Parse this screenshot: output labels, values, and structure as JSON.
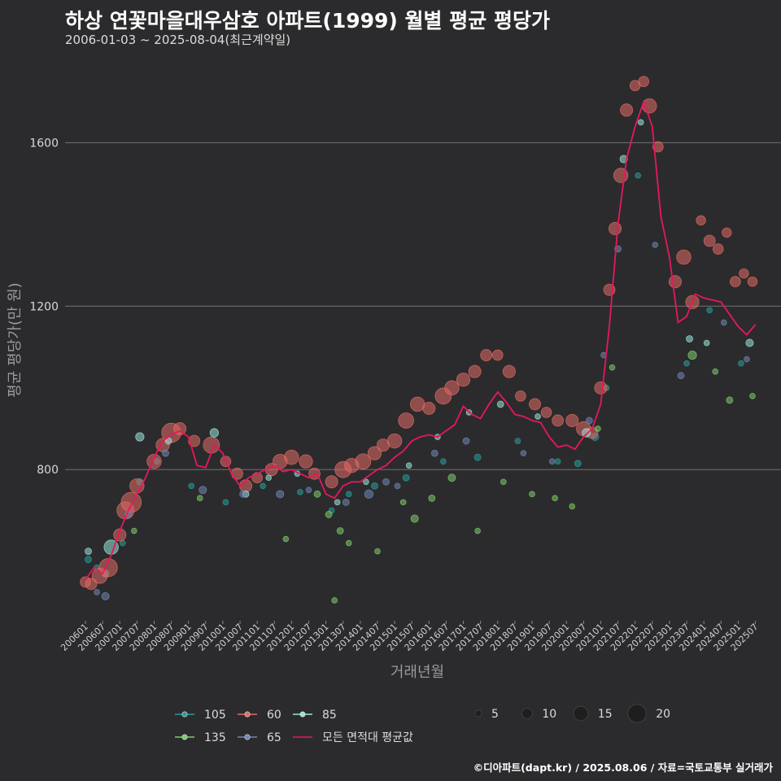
{
  "header": {
    "title": "하상 연꽃마을대우삼호 아파트(1999) 월별 평균 평당가",
    "subtitle": "2006-01-03 ~ 2025-08-04(최근계약일)"
  },
  "footer": {
    "source": "©디아파트(dapt.kr) / 2025.08.06 / 자료=국토교통부 실거래가"
  },
  "chart_data": {
    "type": "scatter",
    "xlabel": "거래년월",
    "ylabel": "평균 평당가(만 원)",
    "ylim": [
      430,
      1810
    ],
    "yticks": [
      800,
      1200,
      1600
    ],
    "grid": true,
    "legend_placement": "bottom",
    "x_tick_labels": [
      "200601",
      "200607",
      "200701",
      "200707",
      "200801",
      "200807",
      "200901",
      "200907",
      "201001",
      "201007",
      "201101",
      "201107",
      "201201",
      "201207",
      "201301",
      "201307",
      "201401",
      "201407",
      "201501",
      "201507",
      "201601",
      "201607",
      "201701",
      "201707",
      "201801",
      "201807",
      "201901",
      "201907",
      "202001",
      "202007",
      "202101",
      "202107",
      "202201",
      "202207",
      "202301",
      "202307",
      "202401",
      "202407",
      "202501",
      "202507"
    ],
    "line_series": {
      "name": "모든 면적대 평균값",
      "color": "#e8175d",
      "points": [
        [
          "2006-01",
          530
        ],
        [
          "2006-04",
          560
        ],
        [
          "2006-07",
          545
        ],
        [
          "2006-10",
          590
        ],
        [
          "2007-01",
          650
        ],
        [
          "2007-04",
          700
        ],
        [
          "2007-07",
          740
        ],
        [
          "2007-10",
          780
        ],
        [
          "2008-01",
          830
        ],
        [
          "2008-04",
          870
        ],
        [
          "2008-07",
          885
        ],
        [
          "2008-10",
          895
        ],
        [
          "2009-01",
          880
        ],
        [
          "2009-04",
          810
        ],
        [
          "2009-07",
          805
        ],
        [
          "2009-10",
          860
        ],
        [
          "2010-01",
          840
        ],
        [
          "2010-04",
          790
        ],
        [
          "2010-07",
          760
        ],
        [
          "2010-10",
          780
        ],
        [
          "2011-01",
          790
        ],
        [
          "2011-04",
          800
        ],
        [
          "2011-07",
          810
        ],
        [
          "2011-10",
          795
        ],
        [
          "2012-01",
          800
        ],
        [
          "2012-04",
          790
        ],
        [
          "2012-07",
          780
        ],
        [
          "2012-10",
          790
        ],
        [
          "2013-01",
          740
        ],
        [
          "2013-04",
          730
        ],
        [
          "2013-07",
          760
        ],
        [
          "2013-10",
          770
        ],
        [
          "2014-01",
          770
        ],
        [
          "2014-04",
          785
        ],
        [
          "2014-07",
          800
        ],
        [
          "2014-10",
          810
        ],
        [
          "2015-01",
          830
        ],
        [
          "2015-04",
          845
        ],
        [
          "2015-07",
          870
        ],
        [
          "2015-10",
          880
        ],
        [
          "2016-01",
          885
        ],
        [
          "2016-04",
          880
        ],
        [
          "2016-07",
          895
        ],
        [
          "2016-10",
          910
        ],
        [
          "2017-01",
          955
        ],
        [
          "2017-04",
          935
        ],
        [
          "2017-07",
          925
        ],
        [
          "2017-10",
          960
        ],
        [
          "2018-01",
          990
        ],
        [
          "2018-04",
          965
        ],
        [
          "2018-07",
          935
        ],
        [
          "2018-10",
          930
        ],
        [
          "2019-01",
          920
        ],
        [
          "2019-04",
          915
        ],
        [
          "2019-07",
          880
        ],
        [
          "2019-10",
          855
        ],
        [
          "2020-01",
          860
        ],
        [
          "2020-04",
          850
        ],
        [
          "2020-07",
          880
        ],
        [
          "2020-10",
          900
        ],
        [
          "2021-01",
          960
        ],
        [
          "2021-04",
          1150
        ],
        [
          "2021-07",
          1400
        ],
        [
          "2021-10",
          1560
        ],
        [
          "2022-01",
          1640
        ],
        [
          "2022-04",
          1700
        ],
        [
          "2022-07",
          1640
        ],
        [
          "2022-10",
          1420
        ],
        [
          "2023-01",
          1320
        ],
        [
          "2023-04",
          1160
        ],
        [
          "2023-07",
          1175
        ],
        [
          "2023-10",
          1230
        ],
        [
          "2024-01",
          1220
        ],
        [
          "2024-04",
          1215
        ],
        [
          "2024-07",
          1210
        ],
        [
          "2024-10",
          1180
        ],
        [
          "2025-01",
          1150
        ],
        [
          "2025-04",
          1130
        ],
        [
          "2025-07",
          1155
        ]
      ]
    },
    "scatter_series": [
      {
        "name": "105",
        "color": "#2a9d9a",
        "points": [
          [
            "2006-02",
            580,
            4
          ],
          [
            "2006-05",
            560,
            3
          ],
          [
            "2006-08",
            545,
            5
          ],
          [
            "2007-02",
            620,
            3
          ],
          [
            "2007-08",
            770,
            4
          ],
          [
            "2008-02",
            820,
            3
          ],
          [
            "2009-02",
            760,
            3
          ],
          [
            "2010-02",
            720,
            3
          ],
          [
            "2011-03",
            760,
            3
          ],
          [
            "2012-04",
            745,
            3
          ],
          [
            "2013-03",
            700,
            3
          ],
          [
            "2013-09",
            740,
            3
          ],
          [
            "2014-06",
            760,
            4
          ],
          [
            "2015-05",
            780,
            4
          ],
          [
            "2016-06",
            820,
            3
          ],
          [
            "2017-06",
            830,
            4
          ],
          [
            "2018-08",
            870,
            3
          ],
          [
            "2019-10",
            820,
            3
          ],
          [
            "2020-05",
            815,
            4
          ],
          [
            "2020-11",
            880,
            5
          ],
          [
            "2021-03",
            1000,
            3
          ],
          [
            "2022-02",
            1520,
            3
          ],
          [
            "2023-07",
            1060,
            3
          ],
          [
            "2024-03",
            1190,
            3
          ],
          [
            "2025-02",
            1060,
            3
          ]
        ]
      },
      {
        "name": "60",
        "color": "#e26a64",
        "points": [
          [
            "2006-01",
            525,
            8
          ],
          [
            "2006-03",
            520,
            9
          ],
          [
            "2006-06",
            540,
            13
          ],
          [
            "2006-09",
            560,
            16
          ],
          [
            "2007-01",
            640,
            10
          ],
          [
            "2007-03",
            700,
            15
          ],
          [
            "2007-05",
            720,
            18
          ],
          [
            "2007-07",
            760,
            12
          ],
          [
            "2008-01",
            820,
            12
          ],
          [
            "2008-04",
            860,
            11
          ],
          [
            "2008-07",
            890,
            17
          ],
          [
            "2008-10",
            900,
            10
          ],
          [
            "2009-03",
            870,
            9
          ],
          [
            "2009-09",
            860,
            14
          ],
          [
            "2010-02",
            820,
            8
          ],
          [
            "2010-06",
            790,
            9
          ],
          [
            "2010-09",
            760,
            10
          ],
          [
            "2011-01",
            780,
            8
          ],
          [
            "2011-06",
            800,
            10
          ],
          [
            "2011-09",
            820,
            12
          ],
          [
            "2012-01",
            830,
            12
          ],
          [
            "2012-06",
            820,
            11
          ],
          [
            "2012-09",
            790,
            9
          ],
          [
            "2013-03",
            770,
            10
          ],
          [
            "2013-07",
            800,
            14
          ],
          [
            "2013-10",
            810,
            12
          ],
          [
            "2014-02",
            820,
            13
          ],
          [
            "2014-06",
            840,
            11
          ],
          [
            "2014-09",
            860,
            10
          ],
          [
            "2015-01",
            870,
            12
          ],
          [
            "2015-05",
            920,
            13
          ],
          [
            "2015-09",
            960,
            12
          ],
          [
            "2016-01",
            950,
            10
          ],
          [
            "2016-06",
            980,
            14
          ],
          [
            "2016-09",
            1000,
            12
          ],
          [
            "2017-01",
            1020,
            11
          ],
          [
            "2017-05",
            1040,
            10
          ],
          [
            "2017-09",
            1080,
            9
          ],
          [
            "2018-01",
            1080,
            8
          ],
          [
            "2018-05",
            1040,
            10
          ],
          [
            "2018-09",
            980,
            8
          ],
          [
            "2019-02",
            960,
            9
          ],
          [
            "2019-06",
            940,
            8
          ],
          [
            "2019-10",
            920,
            9
          ],
          [
            "2020-03",
            920,
            10
          ],
          [
            "2020-07",
            900,
            12
          ],
          [
            "2020-10",
            890,
            9
          ],
          [
            "2021-01",
            1000,
            10
          ],
          [
            "2021-04",
            1240,
            9
          ],
          [
            "2021-06",
            1390,
            10
          ],
          [
            "2021-08",
            1520,
            12
          ],
          [
            "2021-10",
            1680,
            10
          ],
          [
            "2022-01",
            1740,
            8
          ],
          [
            "2022-04",
            1750,
            8
          ],
          [
            "2022-06",
            1690,
            12
          ],
          [
            "2022-09",
            1590,
            8
          ],
          [
            "2023-03",
            1260,
            10
          ],
          [
            "2023-06",
            1320,
            12
          ],
          [
            "2023-09",
            1210,
            11
          ],
          [
            "2023-12",
            1410,
            7
          ],
          [
            "2024-03",
            1360,
            9
          ],
          [
            "2024-06",
            1340,
            8
          ],
          [
            "2024-09",
            1380,
            7
          ],
          [
            "2024-12",
            1260,
            8
          ],
          [
            "2025-03",
            1280,
            7
          ],
          [
            "2025-06",
            1260,
            7
          ]
        ]
      },
      {
        "name": "85",
        "color": "#9ae3d9",
        "points": [
          [
            "2006-02",
            600,
            4
          ],
          [
            "2006-10",
            610,
            12
          ],
          [
            "2007-08",
            880,
            6
          ],
          [
            "2008-06",
            870,
            4
          ],
          [
            "2009-10",
            890,
            6
          ],
          [
            "2010-09",
            740,
            4
          ],
          [
            "2011-05",
            780,
            3
          ],
          [
            "2012-03",
            790,
            3
          ],
          [
            "2013-05",
            720,
            3
          ],
          [
            "2014-03",
            770,
            3
          ],
          [
            "2015-06",
            810,
            3
          ],
          [
            "2016-04",
            880,
            3
          ],
          [
            "2017-03",
            940,
            3
          ],
          [
            "2018-02",
            960,
            4
          ],
          [
            "2019-03",
            930,
            3
          ],
          [
            "2020-08",
            890,
            6
          ],
          [
            "2021-09",
            1560,
            5
          ],
          [
            "2022-03",
            1650,
            3
          ],
          [
            "2023-08",
            1120,
            4
          ],
          [
            "2024-02",
            1110,
            3
          ],
          [
            "2025-05",
            1110,
            5
          ]
        ]
      },
      {
        "name": "135",
        "color": "#7ecb6a",
        "points": [
          [
            "2007-06",
            650,
            3
          ],
          [
            "2009-05",
            730,
            3
          ],
          [
            "2011-11",
            630,
            3
          ],
          [
            "2012-10",
            740,
            4
          ],
          [
            "2013-02",
            690,
            4
          ],
          [
            "2013-06",
            650,
            4
          ],
          [
            "2013-09",
            620,
            3
          ],
          [
            "2014-07",
            600,
            3
          ],
          [
            "2015-04",
            720,
            3
          ],
          [
            "2015-08",
            680,
            5
          ],
          [
            "2016-02",
            730,
            4
          ],
          [
            "2016-09",
            780,
            5
          ],
          [
            "2017-06",
            650,
            3
          ],
          [
            "2018-03",
            770,
            3
          ],
          [
            "2019-01",
            740,
            3
          ],
          [
            "2019-09",
            730,
            3
          ],
          [
            "2020-03",
            710,
            3
          ],
          [
            "2020-12",
            900,
            3
          ],
          [
            "2021-05",
            1050,
            3
          ],
          [
            "2023-09",
            1080,
            6
          ],
          [
            "2024-05",
            1040,
            3
          ],
          [
            "2024-10",
            970,
            4
          ],
          [
            "2025-06",
            980,
            3
          ],
          [
            "2013-04",
            480,
            3
          ]
        ]
      },
      {
        "name": "65",
        "color": "#6f86b5",
        "points": [
          [
            "2006-05",
            500,
            3
          ],
          [
            "2006-08",
            490,
            5
          ],
          [
            "2007-04",
            690,
            4
          ],
          [
            "2008-05",
            840,
            4
          ],
          [
            "2009-06",
            750,
            5
          ],
          [
            "2010-08",
            740,
            4
          ],
          [
            "2011-09",
            740,
            5
          ],
          [
            "2012-07",
            750,
            3
          ],
          [
            "2013-08",
            720,
            4
          ],
          [
            "2014-04",
            740,
            6
          ],
          [
            "2014-10",
            770,
            4
          ],
          [
            "2015-02",
            760,
            3
          ],
          [
            "2016-03",
            840,
            4
          ],
          [
            "2017-02",
            870,
            4
          ],
          [
            "2018-10",
            840,
            3
          ],
          [
            "2019-08",
            820,
            3
          ],
          [
            "2020-09",
            920,
            4
          ],
          [
            "2021-02",
            1080,
            3
          ],
          [
            "2021-07",
            1340,
            4
          ],
          [
            "2022-08",
            1350,
            3
          ],
          [
            "2023-05",
            1030,
            4
          ],
          [
            "2024-08",
            1160,
            3
          ],
          [
            "2025-04",
            1070,
            3
          ]
        ]
      }
    ],
    "size_legend": [
      5,
      10,
      15,
      20
    ],
    "legend_items": [
      {
        "label": "105",
        "kind": "scatter",
        "color": "#2a9d9a"
      },
      {
        "label": "60",
        "kind": "scatter",
        "color": "#e26a64"
      },
      {
        "label": "85",
        "kind": "scatter",
        "color": "#9ae3d9"
      },
      {
        "label": "135",
        "kind": "scatter",
        "color": "#7ecb6a"
      },
      {
        "label": "65",
        "kind": "scatter",
        "color": "#6f86b5"
      },
      {
        "label": "모든 면적대 평균값",
        "kind": "line",
        "color": "#e8175d"
      }
    ]
  }
}
